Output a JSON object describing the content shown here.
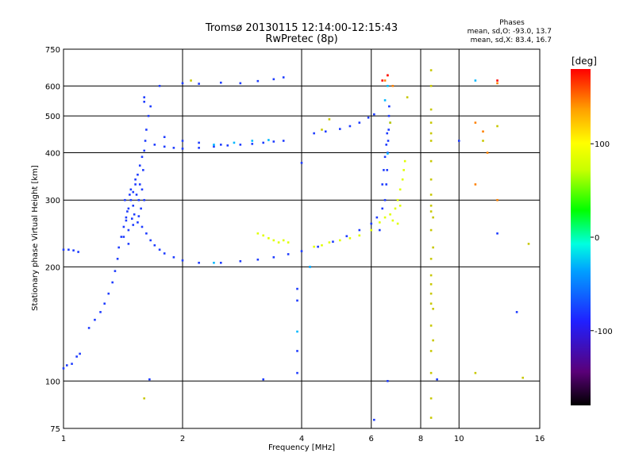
{
  "chart_data": {
    "type": "scatter",
    "title": "Tromsø 20130115 12:14:00-12:15:43",
    "subtitle": "RwPretec (8p)",
    "xlabel": "Frequency [MHz]",
    "ylabel": "Stationary phase Virtual Height [km]",
    "x_scale": "log",
    "y_scale": "log",
    "xlim": [
      1,
      16
    ],
    "ylim": [
      75,
      750
    ],
    "x_ticks": [
      1,
      2,
      4,
      6,
      8,
      10,
      16
    ],
    "x_tick_labels": [
      "1",
      "2",
      "4",
      "6",
      "8",
      "10",
      "16"
    ],
    "y_ticks": [
      75,
      100,
      200,
      300,
      400,
      500,
      600,
      750
    ],
    "y_tick_labels": [
      "75",
      "100",
      "200",
      "300",
      "400",
      "500",
      "600",
      "750"
    ],
    "grid": true,
    "phases_box": {
      "heading": "Phases",
      "line_o": "mean, sd,O: -93.0, 13.7",
      "line_x": "mean, sd,X: 83.4, 16.7"
    },
    "colorbar": {
      "label": "[deg]",
      "range": [
        -180,
        180
      ],
      "ticks": [
        100,
        0,
        -100
      ],
      "tick_labels": [
        "100",
        "0",
        "-100"
      ],
      "colors": [
        "#000000",
        "#5a0078",
        "#2020ff",
        "#00a0ff",
        "#00ffe0",
        "#00ff00",
        "#c8ff00",
        "#ffff00",
        "#ffa000",
        "#ff0000"
      ]
    },
    "series": [
      {
        "color": "#1e3cff",
        "points": [
          [
            1.0,
            222
          ],
          [
            1.03,
            222
          ],
          [
            1.06,
            221
          ],
          [
            1.09,
            219
          ],
          [
            1.0,
            108
          ],
          [
            1.02,
            110
          ],
          [
            1.05,
            111
          ],
          [
            1.08,
            116
          ],
          [
            1.1,
            118
          ],
          [
            1.16,
            138
          ],
          [
            1.2,
            145
          ],
          [
            1.24,
            152
          ],
          [
            1.27,
            160
          ],
          [
            1.3,
            170
          ],
          [
            1.33,
            182
          ],
          [
            1.35,
            195
          ],
          [
            1.37,
            210
          ],
          [
            1.38,
            225
          ],
          [
            1.4,
            240
          ],
          [
            1.42,
            255
          ],
          [
            1.44,
            270
          ],
          [
            1.46,
            285
          ],
          [
            1.48,
            300
          ],
          [
            1.5,
            315
          ],
          [
            1.52,
            330
          ],
          [
            1.54,
            350
          ],
          [
            1.56,
            370
          ],
          [
            1.58,
            390
          ],
          [
            1.6,
            405
          ],
          [
            1.61,
            430
          ],
          [
            1.62,
            460
          ],
          [
            1.64,
            500
          ],
          [
            1.66,
            530
          ],
          [
            1.6,
            560
          ],
          [
            1.6,
            545
          ],
          [
            1.42,
            240
          ],
          [
            1.46,
            250
          ],
          [
            1.5,
            258
          ],
          [
            1.54,
            262
          ],
          [
            1.58,
            255
          ],
          [
            1.62,
            245
          ],
          [
            1.66,
            235
          ],
          [
            1.7,
            228
          ],
          [
            1.75,
            222
          ],
          [
            1.8,
            217
          ],
          [
            1.9,
            212
          ],
          [
            2.0,
            208
          ],
          [
            2.2,
            205
          ],
          [
            2.5,
            205
          ],
          [
            2.8,
            207
          ],
          [
            3.1,
            209
          ],
          [
            3.4,
            212
          ],
          [
            3.7,
            216
          ],
          [
            4.0,
            220
          ],
          [
            4.4,
            226
          ],
          [
            4.8,
            233
          ],
          [
            5.2,
            241
          ],
          [
            5.6,
            250
          ],
          [
            6.0,
            260
          ],
          [
            6.2,
            270
          ],
          [
            6.4,
            285
          ],
          [
            6.5,
            300
          ],
          [
            6.55,
            330
          ],
          [
            6.58,
            360
          ],
          [
            6.6,
            400
          ],
          [
            6.62,
            430
          ],
          [
            6.64,
            460
          ],
          [
            6.65,
            500
          ],
          [
            6.66,
            530
          ],
          [
            1.45,
            280
          ],
          [
            1.5,
            290
          ],
          [
            1.55,
            300
          ],
          [
            1.48,
            320
          ],
          [
            1.53,
            310
          ],
          [
            1.57,
            285
          ],
          [
            1.43,
            300
          ],
          [
            1.47,
            310
          ],
          [
            1.52,
            340
          ],
          [
            1.56,
            330
          ],
          [
            1.59,
            360
          ],
          [
            1.51,
            275
          ],
          [
            1.44,
            265
          ],
          [
            1.49,
            268
          ],
          [
            1.55,
            272
          ],
          [
            1.6,
            300
          ],
          [
            1.58,
            320
          ],
          [
            1.46,
            230
          ],
          [
            1.7,
            420
          ],
          [
            1.8,
            415
          ],
          [
            1.9,
            412
          ],
          [
            2.0,
            410
          ],
          [
            2.2,
            412
          ],
          [
            2.4,
            415
          ],
          [
            2.6,
            418
          ],
          [
            2.8,
            420
          ],
          [
            3.0,
            422
          ],
          [
            3.2,
            425
          ],
          [
            3.4,
            428
          ],
          [
            3.6,
            430
          ],
          [
            1.8,
            440
          ],
          [
            2.0,
            430
          ],
          [
            2.2,
            425
          ],
          [
            2.5,
            420
          ],
          [
            2.0,
            610
          ],
          [
            2.2,
            608
          ],
          [
            2.5,
            612
          ],
          [
            2.8,
            610
          ],
          [
            3.1,
            618
          ],
          [
            3.4,
            625
          ],
          [
            3.6,
            632
          ],
          [
            4.3,
            450
          ],
          [
            4.6,
            455
          ],
          [
            5.0,
            462
          ],
          [
            5.3,
            470
          ],
          [
            5.6,
            480
          ],
          [
            5.9,
            495
          ],
          [
            6.1,
            505
          ],
          [
            6.4,
            330
          ],
          [
            6.45,
            360
          ],
          [
            6.5,
            390
          ],
          [
            6.55,
            420
          ],
          [
            6.58,
            450
          ],
          [
            3.9,
            175
          ],
          [
            3.9,
            120
          ],
          [
            3.9,
            105
          ],
          [
            3.2,
            101
          ],
          [
            4.0,
            376
          ],
          [
            6.1,
            79
          ],
          [
            6.6,
            100
          ],
          [
            8.8,
            101
          ],
          [
            1.65,
            101
          ],
          [
            14.0,
            152
          ],
          [
            12.5,
            245
          ],
          [
            10.0,
            430
          ],
          [
            1.75,
            600
          ],
          [
            3.9,
            163
          ],
          [
            4.2,
            200
          ],
          [
            6.3,
            250
          ]
        ]
      },
      {
        "color": "#00b8ff",
        "points": [
          [
            2.4,
            420
          ],
          [
            2.7,
            425
          ],
          [
            3.0,
            430
          ],
          [
            3.3,
            432
          ],
          [
            6.6,
            600
          ],
          [
            6.5,
            550
          ],
          [
            4.2,
            200
          ],
          [
            6.6,
            398
          ],
          [
            6.7,
            480
          ],
          [
            11.0,
            620
          ],
          [
            3.9,
            135
          ],
          [
            2.4,
            205
          ]
        ]
      },
      {
        "color": "#e0ff00",
        "points": [
          [
            3.1,
            245
          ],
          [
            3.2,
            242
          ],
          [
            3.3,
            238
          ],
          [
            3.4,
            235
          ],
          [
            3.5,
            232
          ],
          [
            3.6,
            235
          ],
          [
            3.7,
            232
          ],
          [
            4.3,
            226
          ],
          [
            4.5,
            228
          ],
          [
            4.7,
            232
          ],
          [
            5.0,
            235
          ],
          [
            5.3,
            238
          ],
          [
            5.6,
            242
          ],
          [
            6.0,
            250
          ],
          [
            6.3,
            262
          ],
          [
            6.5,
            270
          ],
          [
            6.7,
            275
          ],
          [
            6.9,
            285
          ],
          [
            7.0,
            300
          ],
          [
            7.1,
            320
          ],
          [
            7.2,
            340
          ],
          [
            7.25,
            360
          ],
          [
            7.3,
            380
          ],
          [
            7.0,
            260
          ],
          [
            6.8,
            265
          ],
          [
            7.1,
            290
          ]
        ]
      },
      {
        "color": "#c8c800",
        "points": [
          [
            8.5,
            660
          ],
          [
            8.5,
            600
          ],
          [
            8.5,
            520
          ],
          [
            8.5,
            480
          ],
          [
            8.5,
            450
          ],
          [
            8.5,
            430
          ],
          [
            8.5,
            380
          ],
          [
            8.5,
            340
          ],
          [
            8.5,
            310
          ],
          [
            8.5,
            290
          ],
          [
            8.5,
            280
          ],
          [
            8.5,
            250
          ],
          [
            8.5,
            210
          ],
          [
            8.5,
            190
          ],
          [
            8.5,
            180
          ],
          [
            8.5,
            170
          ],
          [
            8.5,
            160
          ],
          [
            8.5,
            140
          ],
          [
            8.5,
            120
          ],
          [
            8.5,
            105
          ],
          [
            8.5,
            90
          ],
          [
            8.5,
            80
          ],
          [
            8.6,
            270
          ],
          [
            8.6,
            225
          ],
          [
            8.6,
            155
          ],
          [
            8.6,
            128
          ],
          [
            15.0,
            230
          ],
          [
            14.5,
            102
          ],
          [
            11.0,
            105
          ],
          [
            11.5,
            430
          ],
          [
            1.6,
            90
          ],
          [
            2.1,
            620
          ],
          [
            6.7,
            480
          ],
          [
            7.4,
            560
          ],
          [
            4.5,
            460
          ],
          [
            4.7,
            490
          ],
          [
            12.5,
            470
          ]
        ]
      },
      {
        "color": "#ff8000",
        "points": [
          [
            11.0,
            480
          ],
          [
            11.5,
            455
          ],
          [
            12.5,
            610
          ],
          [
            11.0,
            330
          ],
          [
            12.5,
            300
          ],
          [
            11.8,
            400
          ],
          [
            6.5,
            620
          ],
          [
            6.8,
            600
          ],
          [
            6.6,
            640
          ]
        ]
      },
      {
        "color": "#ff0000",
        "points": [
          [
            6.6,
            640
          ],
          [
            6.4,
            620
          ],
          [
            12.5,
            620
          ]
        ]
      }
    ]
  }
}
